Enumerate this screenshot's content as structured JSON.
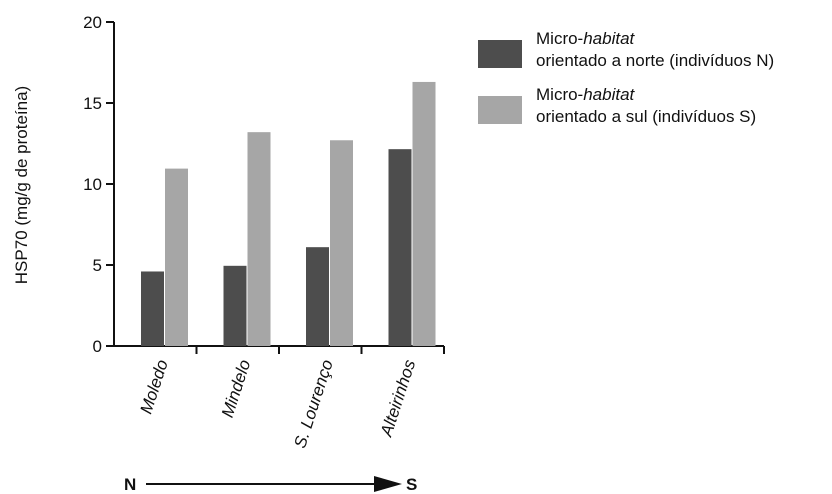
{
  "chart_data": {
    "type": "bar",
    "categories": [
      "Moledo",
      "Mindelo",
      "S. Lourenço",
      "Alteirinhos"
    ],
    "series": [
      {
        "name_prefix": "Micro-",
        "name_italic": "habitat",
        "name_line2": "orientado a norte (indivíduos N)",
        "color": "#4d4d4d",
        "values": [
          4.6,
          4.95,
          6.1,
          12.15
        ]
      },
      {
        "name_prefix": "Micro-",
        "name_italic": "habitat",
        "name_line2": "orientado a sul (indivíduos S)",
        "color": "#a6a6a6",
        "values": [
          10.95,
          13.2,
          12.7,
          16.3
        ]
      }
    ],
    "ylabel": "HSP70 (mg/g de proteína)",
    "ylim": [
      0,
      20
    ],
    "yticks": [
      0,
      5,
      10,
      15,
      20
    ],
    "grid": false,
    "legend_position": "top-right",
    "direction_arrow": {
      "start": "N",
      "end": "S"
    }
  }
}
